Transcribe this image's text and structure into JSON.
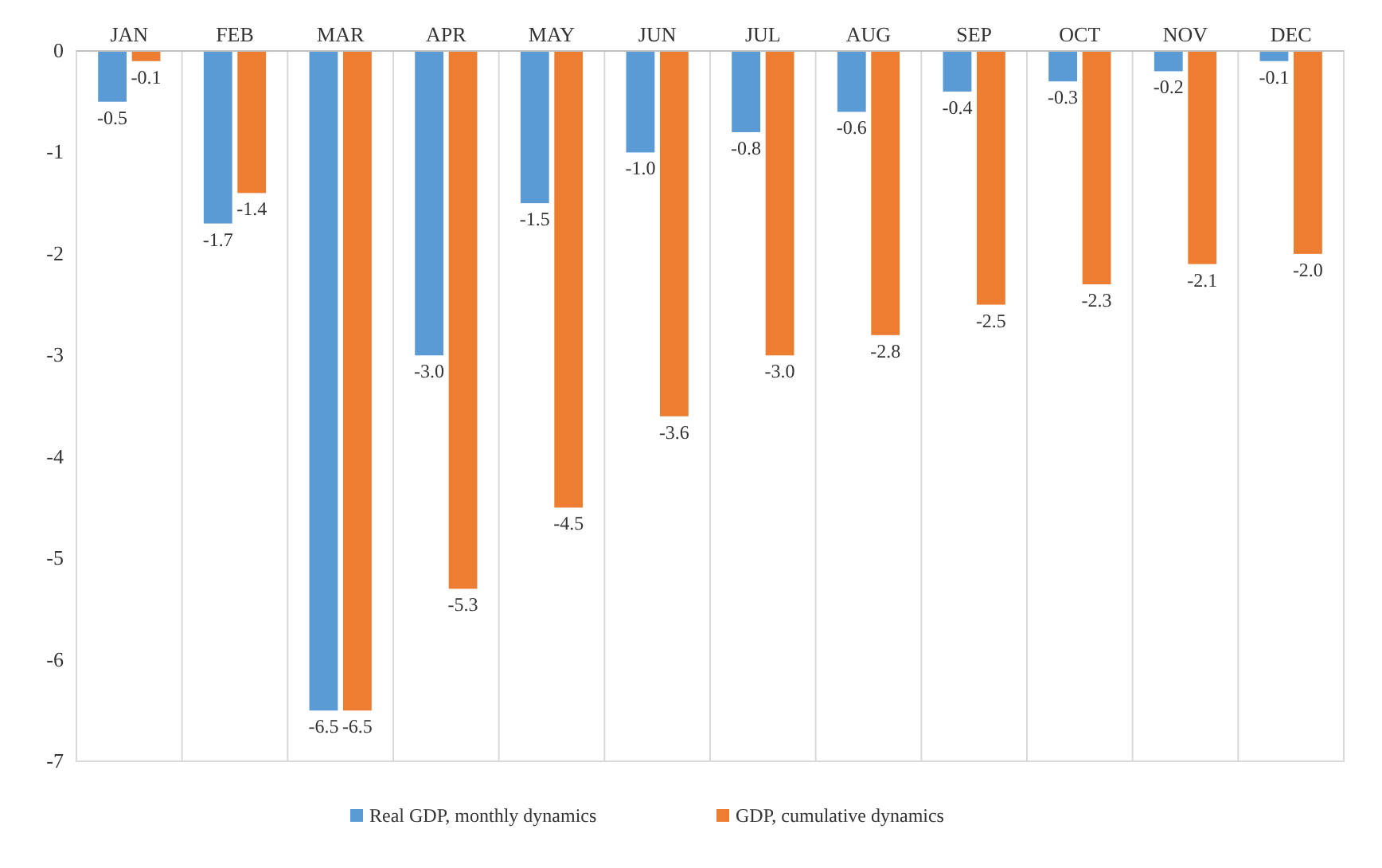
{
  "chart_data": {
    "type": "bar",
    "categories": [
      "JAN",
      "FEB",
      "MAR",
      "APR",
      "MAY",
      "JUN",
      "JUL",
      "AUG",
      "SEP",
      "OCT",
      "NOV",
      "DEC"
    ],
    "series": [
      {
        "name": "Real GDP, monthly dynamics",
        "color": "#5b9bd5",
        "values": [
          -0.5,
          -1.7,
          -6.5,
          -3.0,
          -1.5,
          -1.0,
          -0.8,
          -0.6,
          -0.4,
          -0.3,
          -0.2,
          -0.1
        ],
        "value_labels": [
          "-0.5",
          "-1.7",
          "-6.5",
          "-3.0",
          "-1.5",
          "-1.0",
          "-0.8",
          "-0.6",
          "-0.4",
          "-0.3",
          "-0.2",
          "-0.1"
        ]
      },
      {
        "name": "GDP, cumulative dynamics",
        "color": "#ed7d31",
        "values": [
          -0.1,
          -1.4,
          -6.5,
          -5.3,
          -4.5,
          -3.6,
          -3.0,
          -2.8,
          -2.5,
          -2.3,
          -2.1,
          -2.0
        ],
        "value_labels": [
          "-0.1",
          "-1.4",
          "-6.5",
          "-5.3",
          "-4.5",
          "-3.6",
          "-3.0",
          "-2.8",
          "-2.5",
          "-2.3",
          "-2.1",
          "-2.0"
        ]
      }
    ],
    "ylim": [
      -7,
      0
    ],
    "yticks": [
      -7,
      -6,
      -5,
      -4,
      -3,
      -2,
      -1,
      0
    ],
    "grid": "x",
    "legend": "bottom"
  }
}
